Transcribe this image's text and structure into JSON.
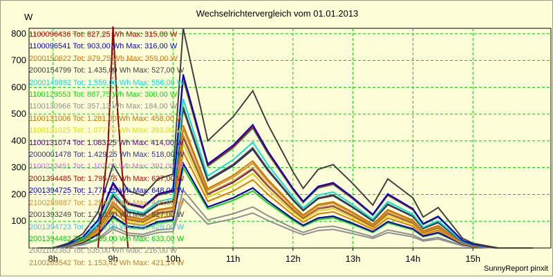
{
  "chart_data": {
    "type": "line",
    "title": "Wechselrichtervergleich vom 01.01.2013",
    "ylabel": "W",
    "xlabel": "",
    "ylim": [
      0,
      820
    ],
    "xlim": [
      7.6,
      16.3
    ],
    "grid": true,
    "legend_position": "top-left",
    "y_ticks": [
      100,
      200,
      300,
      400,
      500,
      600,
      700,
      800
    ],
    "y_tick_labels": [
      "100",
      "200",
      "300",
      "400",
      "500",
      "600",
      "700",
      "800"
    ],
    "x_ticks": [
      8,
      9,
      10,
      11,
      12,
      13,
      14,
      15
    ],
    "x_tick_labels": [
      "8h",
      "9h",
      "10h",
      "11h",
      "12h",
      "13h",
      "14h",
      "15h"
    ],
    "x": [
      7.75,
      8.0,
      8.25,
      8.5,
      8.75,
      9.0,
      9.25,
      9.5,
      9.75,
      10.0,
      10.17,
      10.58,
      11.0,
      11.33,
      11.58,
      12.0,
      12.17,
      12.42,
      12.67,
      13.0,
      13.33,
      13.58,
      14.0,
      14.17,
      14.42,
      14.83,
      15.0,
      15.42,
      16.0
    ],
    "base_profile": [
      0,
      0,
      0.02,
      0.06,
      0.15,
      0.35,
      0.24,
      0.22,
      0.29,
      0.31,
      0.93,
      0.45,
      0.55,
      0.66,
      0.52,
      0.32,
      0.25,
      0.33,
      0.35,
      0.27,
      0.18,
      0.29,
      0.21,
      0.13,
      0.17,
      0.04,
      0.02,
      0,
      0
    ],
    "series": [
      {
        "name": "1100096436 Tot: 827,25 Wh Max: 315,00 W",
        "color": "#c00000",
        "max": 315
      },
      {
        "name": "1100096541 Tot: 903,00 Wh Max: 316,00 W",
        "color": "#0000d0",
        "max": 316
      },
      {
        "name": "2000150622 Tot: 979,75 Wh Max: 359,00 W",
        "color": "#e07800",
        "max": 359
      },
      {
        "name": "2000154799 Tot: 1.435,00 Wh Max: 527,00 W",
        "color": "#404040",
        "max": 527
      },
      {
        "name": "2000149892 Tot: 1.559,00 Wh Max: 556,00 W",
        "color": "#00e0e0",
        "max": 556
      },
      {
        "name": "1100129553 Tot: 887,75 Wh Max: 300,00 W",
        "color": "#00e000",
        "max": 300
      },
      {
        "name": "1100130966 Tot: 357,13 Wh Max: 184,00 W",
        "color": "#909090",
        "max": 184
      },
      {
        "name": "1100131006 Tot: 1.281,00 Wh Max: 458,00 W",
        "color": "#c87800",
        "max": 458
      },
      {
        "name": "1100131025 Tot: 1.077,75 Wh Max: 393,00 W",
        "color": "#e0e000",
        "max": 393
      },
      {
        "name": "1100131074 Tot: 1.083,25 Wh Max: 414,00 W",
        "color": "#600080",
        "max": 414
      },
      {
        "name": "2000001478 Tot: 1.429,25 Wh Max: 518,00 W",
        "color": "#303080",
        "max": 518
      },
      {
        "name": "1100213451 Tot: 1.102,00 Wh Max: 391,00 W",
        "color": "#d070d0",
        "max": 391
      },
      {
        "name": "2001394485 Tot: 1.795,75 Wh Max: 637,00 W",
        "color": "#c00000",
        "max": 637
      },
      {
        "name": "2001394725 Tot: 1.774,25 Wh Max: 648,00 W",
        "color": "#0000d0",
        "max": 648
      },
      {
        "name": "2100289887 Tot: 1.254,50 Wh Max: 445,00 W",
        "color": "#e09030",
        "max": 445
      },
      {
        "name": "2001393249 Tot: 1.760,50 Wh Max: 827,00 W",
        "color": "#404040",
        "max": 827
      },
      {
        "name": "2001394723 Tot: 1.719,00 Wh Max: 629,00 W",
        "color": "#40c0e0",
        "max": 629
      },
      {
        "name": "2001394482 Tot: 1.759,00 Wh Max: 633,00 W",
        "color": "#00d000",
        "max": 633
      },
      {
        "name": "2001102383 Tot: 535,00 Wh Max: 216,00 W",
        "color": "#909090",
        "max": 216
      },
      {
        "name": "2100285542 Tot: 1.153,42 Wh Max: 421,14 W",
        "color": "#c08030",
        "max": 421
      }
    ],
    "spike": {
      "x": [
        8.75,
        8.92,
        9.0,
        9.08,
        9.25
      ],
      "y": [
        0,
        400,
        827,
        500,
        0
      ],
      "color": "#8b0000"
    }
  },
  "footer": "SunnyReport pinxit"
}
